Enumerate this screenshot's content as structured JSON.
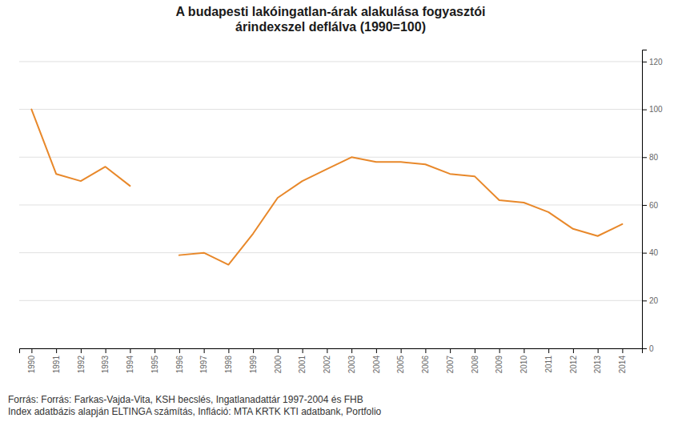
{
  "chart_data": {
    "type": "line",
    "title": "A budapesti lakóingatlan-árak alakulása fogyasztói\nárindexszel deflálva (1990=100)",
    "source": "Forrás:  Forrás: Farkas-Vajda-Vita, KSH becslés, Ingatlanadattár 1997-2004 és FHB\nIndex adatbázis alapján ELTINGA számítás, Infláció: MTA KRTK KTI adatbank, Portfolio",
    "x": [
      1990,
      1991,
      1992,
      1993,
      1994,
      1995,
      1996,
      1997,
      1998,
      1999,
      2000,
      2001,
      2002,
      2003,
      2004,
      2005,
      2006,
      2007,
      2008,
      2009,
      2010,
      2011,
      2012,
      2013,
      2014
    ],
    "values": [
      100,
      73,
      70,
      76,
      68,
      null,
      39,
      40,
      35,
      48,
      63,
      70,
      75,
      80,
      78,
      78,
      77,
      73,
      72,
      62,
      61,
      57,
      50,
      47,
      52
    ],
    "color": "#E8882A",
    "xlim": [
      1989.5,
      2014.8
    ],
    "xticks": [
      1990,
      1991,
      1992,
      1993,
      1994,
      1995,
      1996,
      1997,
      1998,
      1999,
      2000,
      2001,
      2002,
      2003,
      2004,
      2005,
      2006,
      2007,
      2008,
      2009,
      2010,
      2011,
      2012,
      2013,
      2014
    ],
    "ylim": [
      0,
      125
    ],
    "yticks": [
      0,
      20,
      40,
      60,
      80,
      100,
      120
    ],
    "grid": true
  }
}
